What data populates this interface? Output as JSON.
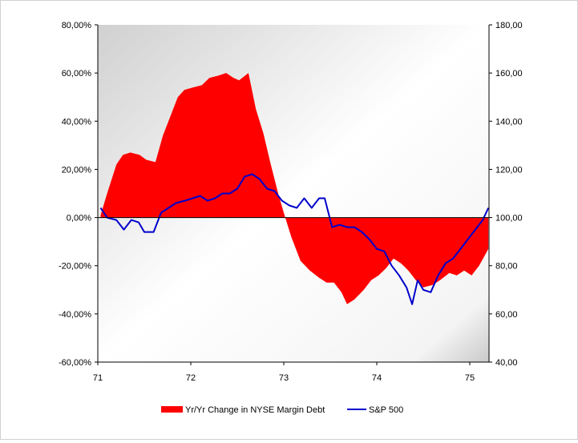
{
  "chart_data": {
    "type": "area+line",
    "title": "",
    "xlabel": "",
    "ylabel": "",
    "y2label": "",
    "x_ticks": [
      "71",
      "72",
      "73",
      "74",
      "75"
    ],
    "x_range": [
      71,
      75.2
    ],
    "y_left_ticks": [
      "-60,00%",
      "-40,00%",
      "-20,00%",
      "0,00%",
      "20,00%",
      "40,00%",
      "60,00%",
      "80,00%"
    ],
    "y_left_range": [
      -60,
      80
    ],
    "y_right_ticks": [
      "40,00",
      "60,00",
      "80,00",
      "100,00",
      "120,00",
      "140,00",
      "160,00",
      "180,00"
    ],
    "y_right_range": [
      40,
      180
    ],
    "grid": false,
    "legend_position": "bottom",
    "series": [
      {
        "name": "Yr/Yr Change in NYSE Margin Debt",
        "type": "area",
        "axis": "left",
        "color": "#ff0000",
        "x": [
          71.03,
          71.1,
          71.2,
          71.27,
          71.35,
          71.45,
          71.52,
          71.62,
          71.7,
          71.78,
          71.86,
          71.93,
          72.02,
          72.12,
          72.2,
          72.3,
          72.38,
          72.46,
          72.52,
          72.62,
          72.7,
          72.78,
          72.86,
          72.94,
          73.0,
          73.08,
          73.18,
          73.28,
          73.38,
          73.46,
          73.54,
          73.62,
          73.68,
          73.76,
          73.86,
          73.94,
          74.02,
          74.1,
          74.18,
          74.26,
          74.34,
          74.42,
          74.5,
          74.6,
          74.68,
          74.78,
          74.86,
          74.94,
          75.02,
          75.1,
          75.2
        ],
        "y": [
          1,
          10,
          22,
          26,
          27,
          26,
          24,
          23,
          34,
          42,
          50,
          53,
          54,
          55,
          58,
          59,
          60,
          58,
          57,
          60,
          45,
          35,
          22,
          10,
          2,
          -8,
          -18,
          -22,
          -25,
          -27,
          -27,
          -31,
          -36,
          -34,
          -30,
          -26,
          -24,
          -21,
          -17,
          -19,
          -22,
          -26,
          -29,
          -28,
          -26,
          -23,
          -24,
          -22,
          -24,
          -20,
          -13
        ]
      },
      {
        "name": "S&P 500",
        "type": "line",
        "axis": "right",
        "color": "#0000cc",
        "x": [
          71.03,
          71.1,
          71.2,
          71.28,
          71.36,
          71.44,
          71.5,
          71.6,
          71.68,
          71.76,
          71.84,
          71.94,
          72.02,
          72.1,
          72.18,
          72.26,
          72.34,
          72.42,
          72.5,
          72.58,
          72.66,
          72.74,
          72.82,
          72.9,
          72.98,
          73.06,
          73.14,
          73.22,
          73.3,
          73.38,
          73.44,
          73.52,
          73.6,
          73.68,
          73.76,
          73.84,
          73.92,
          74.0,
          74.08,
          74.16,
          74.24,
          74.32,
          74.38,
          74.44,
          74.5,
          74.58,
          74.66,
          74.74,
          74.82,
          74.9,
          74.98,
          75.06,
          75.14,
          75.2
        ],
        "y": [
          104,
          100,
          99,
          95,
          99,
          98,
          94,
          94,
          102,
          104,
          106,
          107,
          108,
          109,
          107,
          108,
          110,
          110,
          112,
          117,
          118,
          116,
          112,
          111,
          107,
          105,
          104,
          108,
          104,
          108,
          108,
          96,
          97,
          96,
          96,
          94,
          91,
          87,
          86,
          80,
          76,
          71,
          64,
          74,
          70,
          69,
          76,
          81,
          83,
          87,
          91,
          95,
          99,
          104
        ]
      }
    ]
  }
}
